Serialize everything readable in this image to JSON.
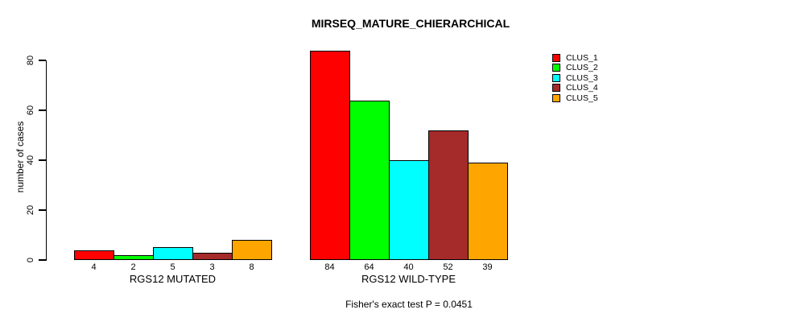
{
  "title": "MIRSEQ_MATURE_CHIERARCHICAL",
  "footer": "Fisher's exact test P = 0.0451",
  "accent_colors": {
    "clus_1": "#FF0000",
    "clus_2": "#00FF00",
    "clus_3": "#00FFFF",
    "clus_4": "#A52A2A",
    "clus_5": "#FFA500"
  },
  "legend": {
    "items": [
      {
        "label": "CLUS_1",
        "color": "#FF0000"
      },
      {
        "label": "CLUS_2",
        "color": "#00FF00"
      },
      {
        "label": "CLUS_3",
        "color": "#00FFFF"
      },
      {
        "label": "CLUS_4",
        "color": "#A52A2A"
      },
      {
        "label": "CLUS_5",
        "color": "#FFA500"
      }
    ]
  },
  "chart_data": {
    "type": "bar",
    "title": "MIRSEQ_MATURE_CHIERARCHICAL",
    "xlabel": "",
    "ylabel": "number of cases",
    "groups": [
      "RGS12 MUTATED",
      "RGS12 WILD-TYPE"
    ],
    "series": [
      {
        "name": "CLUS_1",
        "color": "#FF0000",
        "values": [
          4,
          84
        ]
      },
      {
        "name": "CLUS_2",
        "color": "#00FF00",
        "values": [
          2,
          64
        ]
      },
      {
        "name": "CLUS_3",
        "color": "#00FFFF",
        "values": [
          5,
          40
        ]
      },
      {
        "name": "CLUS_4",
        "color": "#A52A2A",
        "values": [
          3,
          52
        ]
      },
      {
        "name": "CLUS_5",
        "color": "#FFA500",
        "values": [
          8,
          39
        ]
      }
    ],
    "bar_value_labels": [
      [
        4,
        2,
        5,
        3,
        8
      ],
      [
        84,
        64,
        40,
        52,
        39
      ]
    ],
    "yticks": [
      0,
      20,
      40,
      60,
      80
    ],
    "ylim": [
      0,
      84
    ],
    "grid": false,
    "legend_position": "outside-top-right",
    "annotation": "Fisher's exact test P = 0.0451"
  }
}
